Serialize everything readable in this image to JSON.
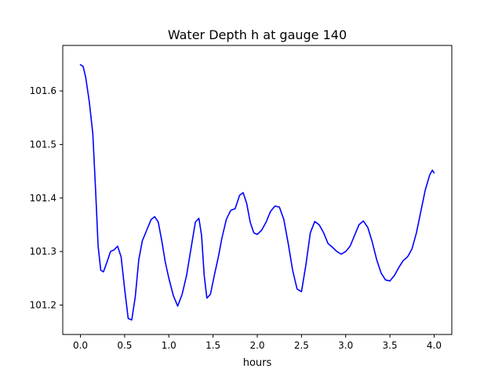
{
  "chart_data": {
    "type": "line",
    "title": "Water Depth h at gauge 140",
    "xlabel": "hours",
    "ylabel": "",
    "xlim": [
      -0.2,
      4.2
    ],
    "ylim": [
      101.145,
      101.685
    ],
    "xticks": [
      0.0,
      0.5,
      1.0,
      1.5,
      2.0,
      2.5,
      3.0,
      3.5,
      4.0
    ],
    "xtick_labels": [
      "0.0",
      "0.5",
      "1.0",
      "1.5",
      "2.0",
      "2.5",
      "3.0",
      "3.5",
      "4.0"
    ],
    "yticks": [
      101.2,
      101.3,
      101.4,
      101.5,
      101.6
    ],
    "ytick_labels": [
      "101.2",
      "101.3",
      "101.4",
      "101.5",
      "101.6"
    ],
    "grid": false,
    "line_color": "#0000ff",
    "series": [
      {
        "x": [
          0.0,
          0.03,
          0.06,
          0.1,
          0.14,
          0.17,
          0.2,
          0.23,
          0.26,
          0.3,
          0.34,
          0.38,
          0.42,
          0.46,
          0.5,
          0.54,
          0.58,
          0.62,
          0.66,
          0.7,
          0.75,
          0.8,
          0.84,
          0.88,
          0.92,
          0.96,
          1.0,
          1.05,
          1.1,
          1.15,
          1.2,
          1.25,
          1.3,
          1.34,
          1.37,
          1.4,
          1.43,
          1.47,
          1.52,
          1.56,
          1.6,
          1.65,
          1.7,
          1.75,
          1.8,
          1.84,
          1.88,
          1.92,
          1.96,
          2.0,
          2.05,
          2.1,
          2.15,
          2.2,
          2.25,
          2.3,
          2.35,
          2.4,
          2.45,
          2.5,
          2.55,
          2.6,
          2.65,
          2.7,
          2.75,
          2.8,
          2.85,
          2.9,
          2.95,
          3.0,
          3.05,
          3.1,
          3.15,
          3.2,
          3.25,
          3.3,
          3.35,
          3.4,
          3.45,
          3.5,
          3.55,
          3.6,
          3.65,
          3.7,
          3.75,
          3.8,
          3.85,
          3.9,
          3.95,
          3.98,
          4.0
        ],
        "y": [
          101.649,
          101.646,
          101.625,
          101.58,
          101.52,
          101.42,
          101.31,
          101.265,
          101.262,
          101.28,
          101.3,
          101.303,
          101.31,
          101.29,
          101.23,
          101.175,
          101.172,
          101.215,
          101.285,
          101.32,
          101.34,
          101.36,
          101.365,
          101.355,
          101.32,
          101.28,
          101.25,
          101.218,
          101.198,
          101.22,
          101.255,
          101.305,
          101.355,
          101.362,
          101.33,
          101.255,
          101.213,
          101.22,
          101.26,
          101.29,
          101.325,
          101.36,
          101.377,
          101.38,
          101.405,
          101.41,
          101.39,
          101.355,
          101.335,
          101.332,
          101.34,
          101.355,
          101.375,
          101.385,
          101.383,
          101.36,
          101.315,
          101.265,
          101.23,
          101.225,
          101.275,
          101.335,
          101.356,
          101.35,
          101.335,
          101.315,
          101.308,
          101.3,
          101.295,
          101.3,
          101.31,
          101.33,
          101.35,
          101.357,
          101.345,
          101.318,
          101.285,
          101.26,
          101.247,
          101.245,
          101.255,
          101.27,
          101.283,
          101.29,
          101.305,
          101.335,
          101.375,
          101.415,
          101.443,
          101.452,
          101.447
        ]
      }
    ]
  }
}
